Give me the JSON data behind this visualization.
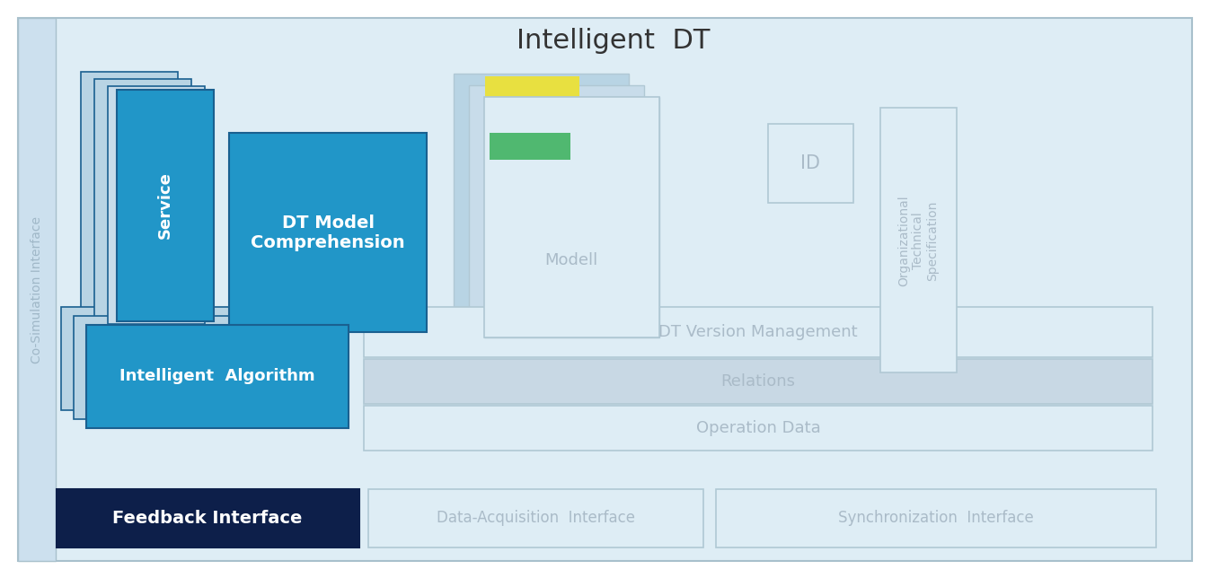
{
  "title": "Intelligent  DT",
  "title_fontsize": 22,
  "title_color": "#333333",
  "bg_outer": "#ffffff",
  "bg_main": "#deedf5",
  "co_sim_bg": "#cce0ee",
  "co_sim_text": "Co-Simulation Interface",
  "co_sim_color": "#a0b8c8",
  "service_color_front": "#2196c8",
  "service_text": "Service",
  "service_text_color": "#ffffff",
  "dt_model_color": "#2196c8",
  "dt_model_text": "DT Model\nComprehension",
  "dt_model_text_color": "#ffffff",
  "modell_bg": "#deedf5",
  "modell_text": "Modell",
  "modell_text_color": "#aabbc8",
  "modell_yellow": "#e8e040",
  "modell_red": "#e87060",
  "modell_green": "#50b870",
  "id_bg": "#deedf5",
  "id_text": "ID",
  "id_text_color": "#aabbc8",
  "org_bg": "#deedf5",
  "org_text": "Organizational\nTechnical\nSpecification",
  "org_text_color": "#aabbc8",
  "algo_color_front": "#2196c8",
  "algo_text": "Intelligent  Algorithm",
  "algo_text_color": "#ffffff",
  "version_bg": "#deedf5",
  "version_text": "DT Version Management",
  "relations_bg": "#c8d8e4",
  "relations_text": "Relations",
  "opdata_bg": "#deedf5",
  "opdata_text": "Operation Data",
  "feedback_bg": "#0d1f4a",
  "feedback_text": "Feedback Interface",
  "feedback_text_color": "#ffffff",
  "dacq_bg": "#deedf5",
  "dacq_text": "Data-Acquisition  Interface",
  "sync_bg": "#deedf5",
  "sync_text": "Synchronization  Interface",
  "interface_text_color": "#aabbc8",
  "card_back1": "#b8d4e4",
  "card_back2": "#c8dcea",
  "border_dark": "#1a6090",
  "border_light": "#a8c0cc",
  "border_mid": "#b0c8d4"
}
